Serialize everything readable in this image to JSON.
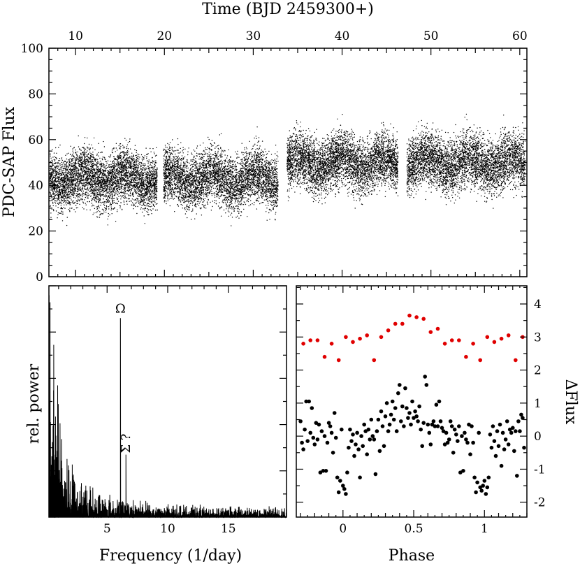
{
  "chart_data": [
    {
      "type": "scatter",
      "panel": "light-curve",
      "xlabel": "Time (BJD 2459300+)",
      "ylabel": "PDC-SAP Flux",
      "xlim": [
        7,
        60.8
      ],
      "ylim": [
        0,
        100
      ],
      "xticks": [
        10,
        20,
        30,
        40,
        50,
        60
      ],
      "xtick_labels": [
        "10",
        "20",
        "30",
        "40",
        "50",
        "60"
      ],
      "yticks": [
        0,
        20,
        40,
        60,
        80,
        100
      ],
      "ytick_labels": [
        "0",
        "20",
        "40",
        "60",
        "80",
        "100"
      ],
      "observing_segments": [
        [
          7.1,
          19.2
        ],
        [
          19.9,
          32.8
        ],
        [
          33.8,
          46.3
        ],
        [
          47.3,
          60.6
        ]
      ],
      "segment_mean_flux": [
        43,
        43,
        50,
        50
      ],
      "flux_scatter_sigma": 10,
      "points_per_segment": 4500,
      "grid": false
    },
    {
      "type": "line",
      "panel": "power-spectrum",
      "xlabel": "Frequency (1/day)",
      "ylabel": "rel. power",
      "xlim": [
        0.2,
        19.8
      ],
      "ylim": [
        0,
        1
      ],
      "xticks": [
        5,
        10,
        15
      ],
      "xtick_labels": [
        "5",
        "10",
        "15"
      ],
      "peaks": [
        {
          "label": "Ω",
          "frequency": 6.1,
          "power": 0.86
        },
        {
          "label": "Σ ?",
          "frequency": 6.55,
          "power": 0.27
        }
      ],
      "low_frequency_max_power": 0.98,
      "grid": false
    },
    {
      "type": "scatter",
      "panel": "phase-folded",
      "xlabel": "Phase",
      "ylabel": "ΔFlux",
      "xlim": [
        -0.33,
        1.3
      ],
      "ylim": [
        -2.45,
        4.55
      ],
      "xticks": [
        0,
        0.5,
        1
      ],
      "xtick_labels": [
        "0",
        "0.5",
        "1"
      ],
      "yticks": [
        -2,
        -1,
        0,
        1,
        2,
        3,
        4
      ],
      "ytick_labels": [
        "-2",
        "-1",
        "0",
        "1",
        "2",
        "3",
        "4"
      ],
      "series": [
        {
          "color": "#e00000",
          "points": [
            [
              -0.28,
              2.8
            ],
            [
              -0.23,
              2.9
            ],
            [
              -0.18,
              2.9
            ],
            [
              -0.13,
              2.4
            ],
            [
              -0.08,
              2.8
            ],
            [
              -0.03,
              2.3
            ],
            [
              0.02,
              3.0
            ],
            [
              0.07,
              2.85
            ],
            [
              0.12,
              2.95
            ],
            [
              0.17,
              3.05
            ],
            [
              0.22,
              2.3
            ],
            [
              0.27,
              3.0
            ],
            [
              0.32,
              3.2
            ],
            [
              0.37,
              3.4
            ],
            [
              0.42,
              3.4
            ],
            [
              0.47,
              3.65
            ],
            [
              0.52,
              3.6
            ],
            [
              0.57,
              3.55
            ],
            [
              0.62,
              3.15
            ],
            [
              0.67,
              3.25
            ],
            [
              0.72,
              2.8
            ],
            [
              0.77,
              2.9
            ],
            [
              0.82,
              2.9
            ],
            [
              0.87,
              2.4
            ],
            [
              0.92,
              2.8
            ],
            [
              0.97,
              2.3
            ],
            [
              1.02,
              3.0
            ],
            [
              1.07,
              2.85
            ],
            [
              1.12,
              2.95
            ],
            [
              1.17,
              3.05
            ],
            [
              1.22,
              2.3
            ],
            [
              1.27,
              3.0
            ]
          ]
        },
        {
          "color": "#000000",
          "points": [
            [
              -0.3,
              0.45
            ],
            [
              -0.29,
              -0.2
            ],
            [
              -0.28,
              -0.4
            ],
            [
              -0.27,
              0.2
            ],
            [
              -0.26,
              1.05
            ],
            [
              -0.25,
              -0.15
            ],
            [
              -0.24,
              1.05
            ],
            [
              -0.23,
              0.1
            ],
            [
              -0.22,
              0.85
            ],
            [
              -0.21,
              -0.05
            ],
            [
              -0.2,
              -0.25
            ],
            [
              -0.19,
              0.4
            ],
            [
              -0.18,
              -0.1
            ],
            [
              -0.17,
              0.35
            ],
            [
              -0.16,
              -1.1
            ],
            [
              -0.15,
              0.15
            ],
            [
              -0.14,
              -1.05
            ],
            [
              -0.13,
              0.0
            ],
            [
              -0.12,
              -1.05
            ],
            [
              -0.11,
              -0.2
            ],
            [
              -0.1,
              0.4
            ],
            [
              -0.09,
              0.3
            ],
            [
              -0.08,
              0.1
            ],
            [
              -0.07,
              -0.5
            ],
            [
              -0.06,
              0.7
            ],
            [
              -0.05,
              -0.05
            ],
            [
              -0.04,
              -1.25
            ],
            [
              -0.03,
              -1.7
            ],
            [
              -0.02,
              -1.35
            ],
            [
              -0.01,
              0.2
            ],
            [
              0.0,
              -1.5
            ],
            [
              0.01,
              -1.6
            ],
            [
              0.02,
              -1.75
            ],
            [
              0.03,
              -1.1
            ],
            [
              0.04,
              -0.35
            ],
            [
              0.05,
              0.2
            ],
            [
              0.06,
              -0.15
            ],
            [
              0.07,
              0.05
            ],
            [
              0.08,
              -0.6
            ],
            [
              0.09,
              -0.25
            ],
            [
              0.1,
              0.1
            ],
            [
              0.11,
              -0.4
            ],
            [
              0.12,
              -1.25
            ],
            [
              0.13,
              0.0
            ],
            [
              0.14,
              -0.3
            ],
            [
              0.15,
              0.35
            ],
            [
              0.16,
              0.15
            ],
            [
              0.17,
              -0.55
            ],
            [
              0.18,
              0.2
            ],
            [
              0.19,
              -0.1
            ],
            [
              0.2,
              0.5
            ],
            [
              0.21,
              0.0
            ],
            [
              0.22,
              -0.1
            ],
            [
              0.23,
              -1.15
            ],
            [
              0.24,
              0.15
            ],
            [
              0.25,
              0.5
            ],
            [
              0.26,
              -0.45
            ],
            [
              0.27,
              0.75
            ],
            [
              0.28,
              0.3
            ],
            [
              0.29,
              -0.3
            ],
            [
              0.3,
              0.6
            ],
            [
              0.31,
              1.0
            ],
            [
              0.32,
              0.15
            ],
            [
              0.33,
              0.35
            ],
            [
              0.34,
              0.65
            ],
            [
              0.35,
              1.05
            ],
            [
              0.36,
              0.5
            ],
            [
              0.37,
              0.85
            ],
            [
              0.38,
              0.15
            ],
            [
              0.39,
              1.3
            ],
            [
              0.4,
              1.55
            ],
            [
              0.41,
              0.45
            ],
            [
              0.42,
              0.9
            ],
            [
              0.43,
              0.3
            ],
            [
              0.44,
              1.45
            ],
            [
              0.45,
              0.85
            ],
            [
              0.46,
              0.55
            ],
            [
              0.47,
              0.7
            ],
            [
              0.48,
              0.35
            ],
            [
              0.49,
              1.05
            ],
            [
              0.5,
              0.55
            ],
            [
              0.51,
              0.75
            ],
            [
              0.52,
              0.6
            ],
            [
              0.53,
              0.45
            ],
            [
              0.54,
              0.9
            ],
            [
              0.55,
              0.2
            ],
            [
              0.56,
              -0.3
            ],
            [
              0.57,
              0.4
            ],
            [
              0.58,
              1.8
            ],
            [
              0.59,
              1.55
            ],
            [
              0.6,
              0.35
            ],
            [
              0.61,
              0.1
            ],
            [
              0.62,
              -0.25
            ],
            [
              0.63,
              0.35
            ],
            [
              0.64,
              0.45
            ],
            [
              0.65,
              0.3
            ],
            [
              0.66,
              0.95
            ],
            [
              0.67,
              0.3
            ],
            [
              0.68,
              1.05
            ],
            [
              0.69,
              0.45
            ],
            [
              0.7,
              0.25
            ],
            [
              0.71,
              0.15
            ],
            [
              0.72,
              -0.25
            ],
            [
              0.73,
              0.1
            ],
            [
              0.74,
              -0.2
            ],
            [
              0.75,
              -0.1
            ],
            [
              0.76,
              0.45
            ],
            [
              0.77,
              0.3
            ],
            [
              0.78,
              -0.5
            ],
            [
              0.79,
              0.2
            ],
            [
              0.8,
              0.05
            ],
            [
              0.81,
              -0.15
            ],
            [
              0.82,
              0.3
            ],
            [
              0.83,
              -1.1
            ],
            [
              0.84,
              0.0
            ],
            [
              0.85,
              -1.05
            ],
            [
              0.86,
              0.1
            ],
            [
              0.87,
              -0.1
            ],
            [
              0.88,
              -0.2
            ],
            [
              0.89,
              0.35
            ],
            [
              0.9,
              -0.55
            ],
            [
              0.91,
              0.3
            ],
            [
              0.92,
              -0.2
            ],
            [
              0.93,
              -1.25
            ],
            [
              0.94,
              -1.7
            ],
            [
              0.95,
              -1.4
            ],
            [
              0.96,
              0.1
            ],
            [
              0.97,
              -1.55
            ],
            [
              0.98,
              -1.65
            ],
            [
              0.99,
              -1.5
            ],
            [
              1.0,
              -1.35
            ],
            [
              1.01,
              -1.75
            ],
            [
              1.02,
              -1.55
            ],
            [
              1.03,
              -1.25
            ],
            [
              1.04,
              0.05
            ],
            [
              1.05,
              -0.35
            ],
            [
              1.06,
              0.3
            ],
            [
              1.07,
              -0.15
            ],
            [
              1.08,
              -0.6
            ],
            [
              1.09,
              0.15
            ],
            [
              1.1,
              -0.3
            ],
            [
              1.11,
              0.35
            ],
            [
              1.12,
              -0.9
            ],
            [
              1.13,
              0.1
            ],
            [
              1.14,
              -0.4
            ],
            [
              1.15,
              -0.1
            ],
            [
              1.16,
              0.45
            ],
            [
              1.17,
              -0.25
            ],
            [
              1.18,
              0.2
            ],
            [
              1.19,
              0.1
            ],
            [
              1.2,
              0.25
            ],
            [
              1.21,
              -0.45
            ],
            [
              1.22,
              0.15
            ],
            [
              1.23,
              -1.2
            ],
            [
              1.24,
              0.45
            ],
            [
              1.25,
              0.15
            ],
            [
              1.26,
              0.65
            ],
            [
              1.27,
              0.55
            ],
            [
              1.28,
              -0.35
            ]
          ]
        }
      ],
      "grid": false
    }
  ]
}
